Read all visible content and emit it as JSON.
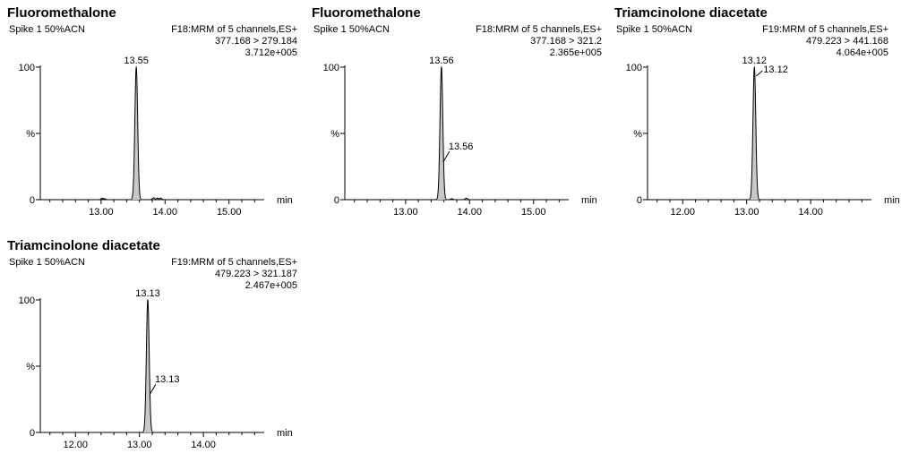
{
  "chart_data": [
    {
      "type": "chromatogram",
      "title": "Fluoromethalone",
      "sample": "Spike 1 50%ACN",
      "function": "F18:MRM of 5 channels,ES+",
      "transition": "377.168 > 279.184",
      "intensity": "3.712e+005",
      "xlabel": "min",
      "xlim": [
        12.05,
        15.55
      ],
      "xticks": [
        "13.00",
        "14.00",
        "15.00"
      ],
      "yticks": [
        "0",
        "%",
        "100"
      ],
      "ylim": [
        0,
        100
      ],
      "peaks": [
        {
          "rt": 13.55,
          "height": 100,
          "label": "13.55",
          "label_side": "top"
        }
      ],
      "noise": [
        [
          13.02,
          1.2
        ],
        [
          13.05,
          0.8
        ],
        [
          13.82,
          1.5
        ],
        [
          13.88,
          1.1
        ],
        [
          13.93,
          1.3
        ]
      ]
    },
    {
      "type": "chromatogram",
      "title": "Fluoromethalone",
      "sample": "Spike 1 50%ACN",
      "function": "F18:MRM of 5 channels,ES+",
      "transition": "377.168 > 321.2",
      "intensity": "2.365e+005",
      "xlabel": "min",
      "xlim": [
        12.05,
        15.55
      ],
      "xticks": [
        "13.00",
        "14.00",
        "15.00"
      ],
      "yticks": [
        "0",
        "%",
        "100"
      ],
      "ylim": [
        0,
        100
      ],
      "peaks": [
        {
          "rt": 13.56,
          "height": 100,
          "label": "13.56",
          "label_side": "top"
        },
        {
          "rt": 13.56,
          "height": 100,
          "label": "13.56",
          "label_side": "right"
        }
      ],
      "noise": [
        [
          13.72,
          0.8
        ],
        [
          13.95,
          1.2
        ]
      ]
    },
    {
      "type": "chromatogram",
      "title": "Triamcinolone diacetate",
      "sample": "Spike 1 50%ACN",
      "function": "F19:MRM of 5 channels,ES+",
      "transition": "479.223 > 441.168",
      "intensity": "4.064e+005",
      "xlabel": "min",
      "xlim": [
        11.45,
        14.95
      ],
      "xticks": [
        "12.00",
        "13.00",
        "14.00"
      ],
      "yticks": [
        "0",
        "%",
        "100"
      ],
      "ylim": [
        0,
        100
      ],
      "peaks": [
        {
          "rt": 13.12,
          "height": 100,
          "label": "13.12",
          "label_side": "top"
        },
        {
          "rt": 13.12,
          "height": 100,
          "label": "13.12",
          "label_side": "right_high"
        }
      ],
      "noise": []
    },
    {
      "type": "chromatogram",
      "title": "Triamcinolone diacetate",
      "sample": "Spike 1 50%ACN",
      "function": "F19:MRM of 5 channels,ES+",
      "transition": "479.223 > 321.187",
      "intensity": "2.467e+005",
      "xlabel": "min",
      "xlim": [
        11.45,
        14.95
      ],
      "xticks": [
        "12.00",
        "13.00",
        "14.00"
      ],
      "yticks": [
        "0",
        "%",
        "100"
      ],
      "ylim": [
        0,
        100
      ],
      "peaks": [
        {
          "rt": 13.13,
          "height": 100,
          "label": "13.13",
          "label_side": "top"
        },
        {
          "rt": 13.13,
          "height": 100,
          "label": "13.13",
          "label_side": "right"
        }
      ],
      "noise": []
    }
  ]
}
